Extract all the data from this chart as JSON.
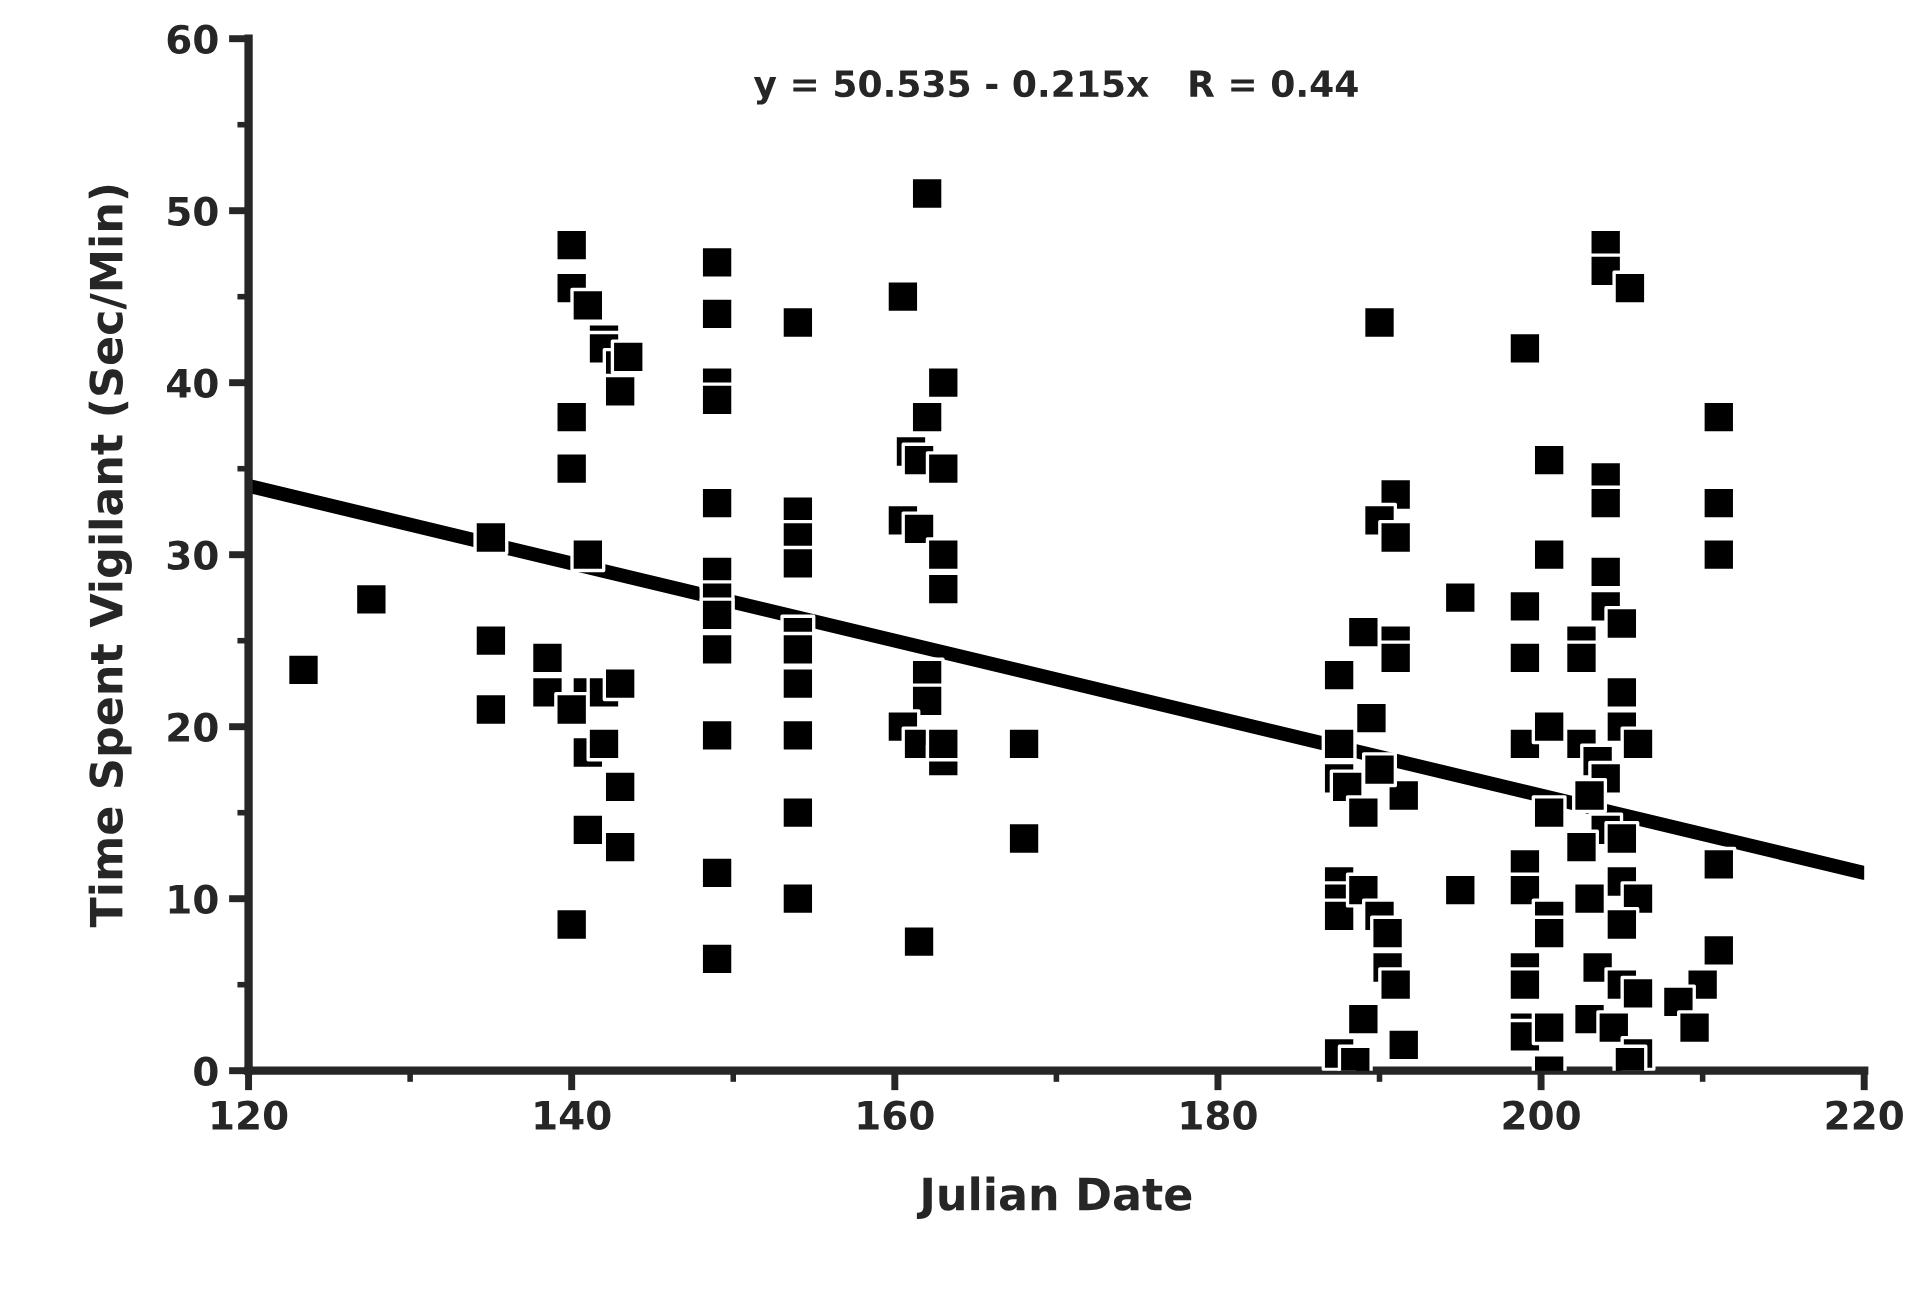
{
  "chart_data": {
    "type": "scatter",
    "xlabel": "Julian Date",
    "ylabel": "Time Spent Vigilant (Sec/Min)",
    "annotations": [
      "y = 50.535 - 0.215x   R = 0.44"
    ],
    "xlim": [
      120,
      220
    ],
    "xticks": [
      120,
      140,
      160,
      180,
      200,
      220
    ],
    "ylim": [
      0,
      60
    ],
    "yticks": [
      0,
      10,
      20,
      30,
      40,
      50,
      60
    ],
    "grid": false,
    "series": [
      {
        "color": "#000000",
        "marker": "square",
        "x": [
          123.4,
          127.6,
          135,
          135,
          135,
          138.5,
          138.5,
          140,
          140,
          141,
          142,
          142,
          143,
          143.5,
          143,
          140,
          140,
          141,
          141,
          142,
          143,
          140,
          141,
          142,
          143,
          141,
          143,
          140,
          149,
          149,
          149,
          149,
          149,
          149,
          149,
          149,
          149,
          149,
          149,
          149,
          154,
          154,
          154,
          154,
          154,
          154,
          154,
          154,
          154,
          154,
          162,
          160.5,
          163,
          162,
          161,
          161.5,
          163,
          160.5,
          161.5,
          163,
          163,
          162,
          162,
          160.5,
          161.5,
          163,
          163,
          161.5,
          168,
          168,
          190,
          191,
          190,
          191,
          189,
          191,
          191,
          187.5,
          189.5,
          187.5,
          187.5,
          188,
          191.5,
          189,
          190,
          187.5,
          187.5,
          187.5,
          189,
          190,
          190.5,
          190.5,
          191,
          189,
          191.5,
          187.5,
          188.5,
          195,
          195,
          199,
          199,
          199,
          199,
          199,
          199,
          199,
          199,
          199,
          199,
          200.5,
          200.5,
          200.5,
          200.5,
          200.5,
          200.5,
          200.5,
          200.5,
          204,
          204,
          205.5,
          204,
          204,
          204,
          204,
          205,
          202.5,
          202.5,
          205,
          205,
          206,
          202.5,
          203.5,
          204,
          203,
          204,
          202.5,
          205,
          205,
          206,
          203,
          205,
          203.5,
          205,
          206,
          203,
          204.5,
          206,
          205.5,
          211,
          211,
          211,
          211,
          211,
          210,
          208.5,
          209.5
        ],
        "values": [
          23.3,
          27.4,
          31,
          25,
          21,
          24,
          22,
          48,
          45.5,
          44.5,
          42.5,
          42,
          41,
          41.5,
          39.5,
          38,
          35,
          30,
          22,
          22,
          22.5,
          21,
          18.5,
          19,
          16.5,
          14,
          13,
          8.5,
          47,
          44,
          40,
          39,
          33,
          29,
          27.5,
          26.5,
          24.5,
          19.5,
          11.5,
          6.5,
          43.5,
          32.5,
          31,
          29.5,
          25.5,
          24.5,
          22.5,
          19.5,
          15,
          10,
          51,
          45,
          40,
          38,
          36,
          35.5,
          35,
          32,
          31.5,
          30,
          28,
          23,
          21.5,
          20,
          19,
          18,
          19,
          7.5,
          19,
          13.5,
          43.5,
          33.5,
          32,
          31,
          25.5,
          25,
          24,
          23,
          20.5,
          19,
          17,
          16.5,
          16,
          15,
          17.5,
          11,
          10,
          9,
          10.5,
          9,
          8,
          6,
          5,
          3,
          1.5,
          1,
          0.5,
          27.5,
          10.5,
          42,
          27,
          24,
          19,
          12,
          10.5,
          6,
          5,
          2.5,
          2,
          35.5,
          30,
          20,
          15,
          9,
          8,
          2.5,
          0,
          48,
          46.5,
          45.5,
          34.5,
          33,
          29,
          27,
          26,
          25,
          24,
          22,
          20,
          19,
          19,
          18,
          17,
          16,
          14,
          13,
          13.5,
          11,
          10,
          10,
          8.5,
          6,
          5,
          4.5,
          3,
          2.5,
          1,
          0.5,
          38,
          33,
          30,
          12,
          7,
          5,
          4,
          2.5
        ]
      },
      {
        "type": "line",
        "marker": "none",
        "color": "#000000",
        "x": [
          120,
          220
        ],
        "values": [
          34,
          11.5
        ]
      }
    ]
  }
}
